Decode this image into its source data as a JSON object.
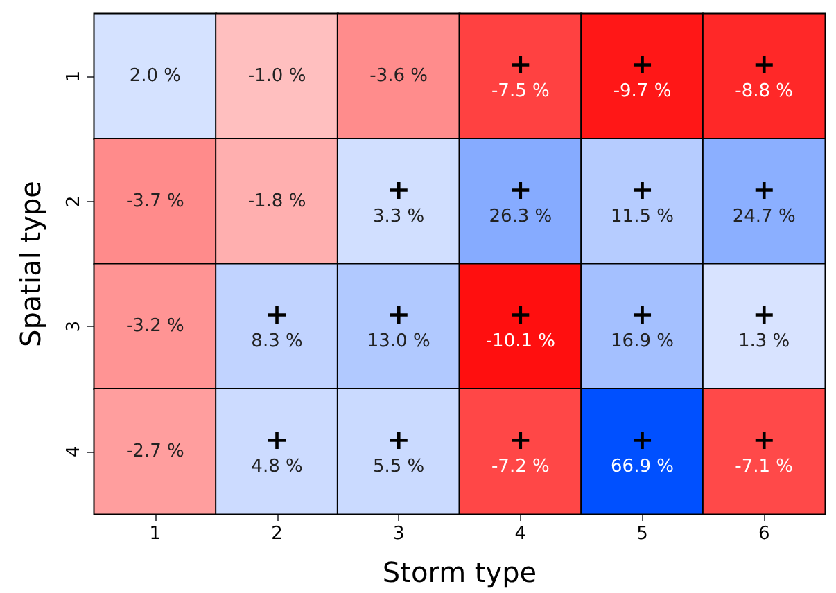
{
  "chart_data": {
    "type": "heatmap",
    "xlabel": "Storm type",
    "ylabel": "Spatial type",
    "categories": [
      "1",
      "2",
      "3",
      "4",
      "5",
      "6"
    ],
    "y_categories": [
      "1",
      "2",
      "3",
      "4"
    ],
    "cells": [
      [
        2.0,
        -1.0,
        -3.6,
        -7.5,
        -9.7,
        -8.8
      ],
      [
        -3.7,
        -1.8,
        3.3,
        26.3,
        11.5,
        24.7
      ],
      [
        -3.2,
        8.3,
        13.0,
        -10.1,
        16.9,
        1.3
      ],
      [
        -2.7,
        4.8,
        5.5,
        -7.2,
        66.9,
        -7.1
      ]
    ],
    "cell_labels": [
      [
        "2.0 %",
        "-1.0 %",
        "-3.6 %",
        "+\n-7.5 %",
        "+\n-9.7 %",
        "+\n-8.8 %"
      ],
      [
        "-3.7 %",
        "-1.8 %",
        "+\n3.3 %",
        "+\n26.3 %",
        "+\n11.5 %",
        "+\n24.7 %"
      ],
      [
        "-3.2 %",
        "+\n8.3 %",
        "+\n13.0 %",
        "+\n-10.1 %",
        "+\n16.9 %",
        "+\n1.3 %"
      ],
      [
        "-2.7 %",
        "+\n4.8 %",
        "+\n5.5 %",
        "+\n-7.2 %",
        "+\n66.9 %",
        "+\n-7.1 %"
      ]
    ]
  }
}
